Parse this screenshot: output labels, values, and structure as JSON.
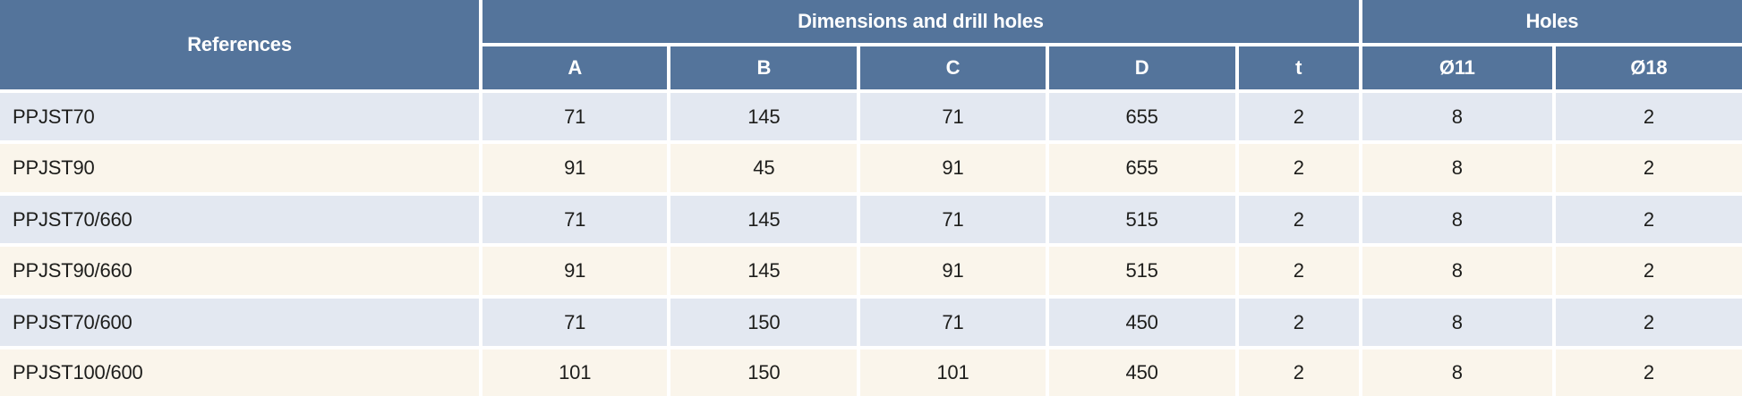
{
  "table": {
    "header": {
      "references_label": "References",
      "dimensions_group_label": "Dimensions and drill holes",
      "holes_group_label": "Holes",
      "dimension_columns": [
        "A",
        "B",
        "C",
        "D",
        "t"
      ],
      "holes_columns": [
        "Ø11",
        "Ø18"
      ]
    },
    "rows": [
      {
        "reference": "PPJST70",
        "values": [
          "71",
          "145",
          "71",
          "655",
          "2",
          "8",
          "2"
        ]
      },
      {
        "reference": "PPJST90",
        "values": [
          "91",
          "45",
          "91",
          "655",
          "2",
          "8",
          "2"
        ]
      },
      {
        "reference": "PPJST70/660",
        "values": [
          "71",
          "145",
          "71",
          "515",
          "2",
          "8",
          "2"
        ]
      },
      {
        "reference": "PPJST90/660",
        "values": [
          "91",
          "145",
          "91",
          "515",
          "2",
          "8",
          "2"
        ]
      },
      {
        "reference": "PPJST70/600",
        "values": [
          "71",
          "150",
          "71",
          "450",
          "2",
          "8",
          "2"
        ]
      },
      {
        "reference": "PPJST100/600",
        "values": [
          "101",
          "150",
          "101",
          "450",
          "2",
          "8",
          "2"
        ]
      }
    ],
    "colors": {
      "header_bg": "#54749B",
      "row_blue": "#E3E8F1",
      "row_cream": "#FAF5EB",
      "header_text": "#FFFFFF",
      "cell_text": "#1D1D1B",
      "grid": "#FFFFFF"
    }
  }
}
